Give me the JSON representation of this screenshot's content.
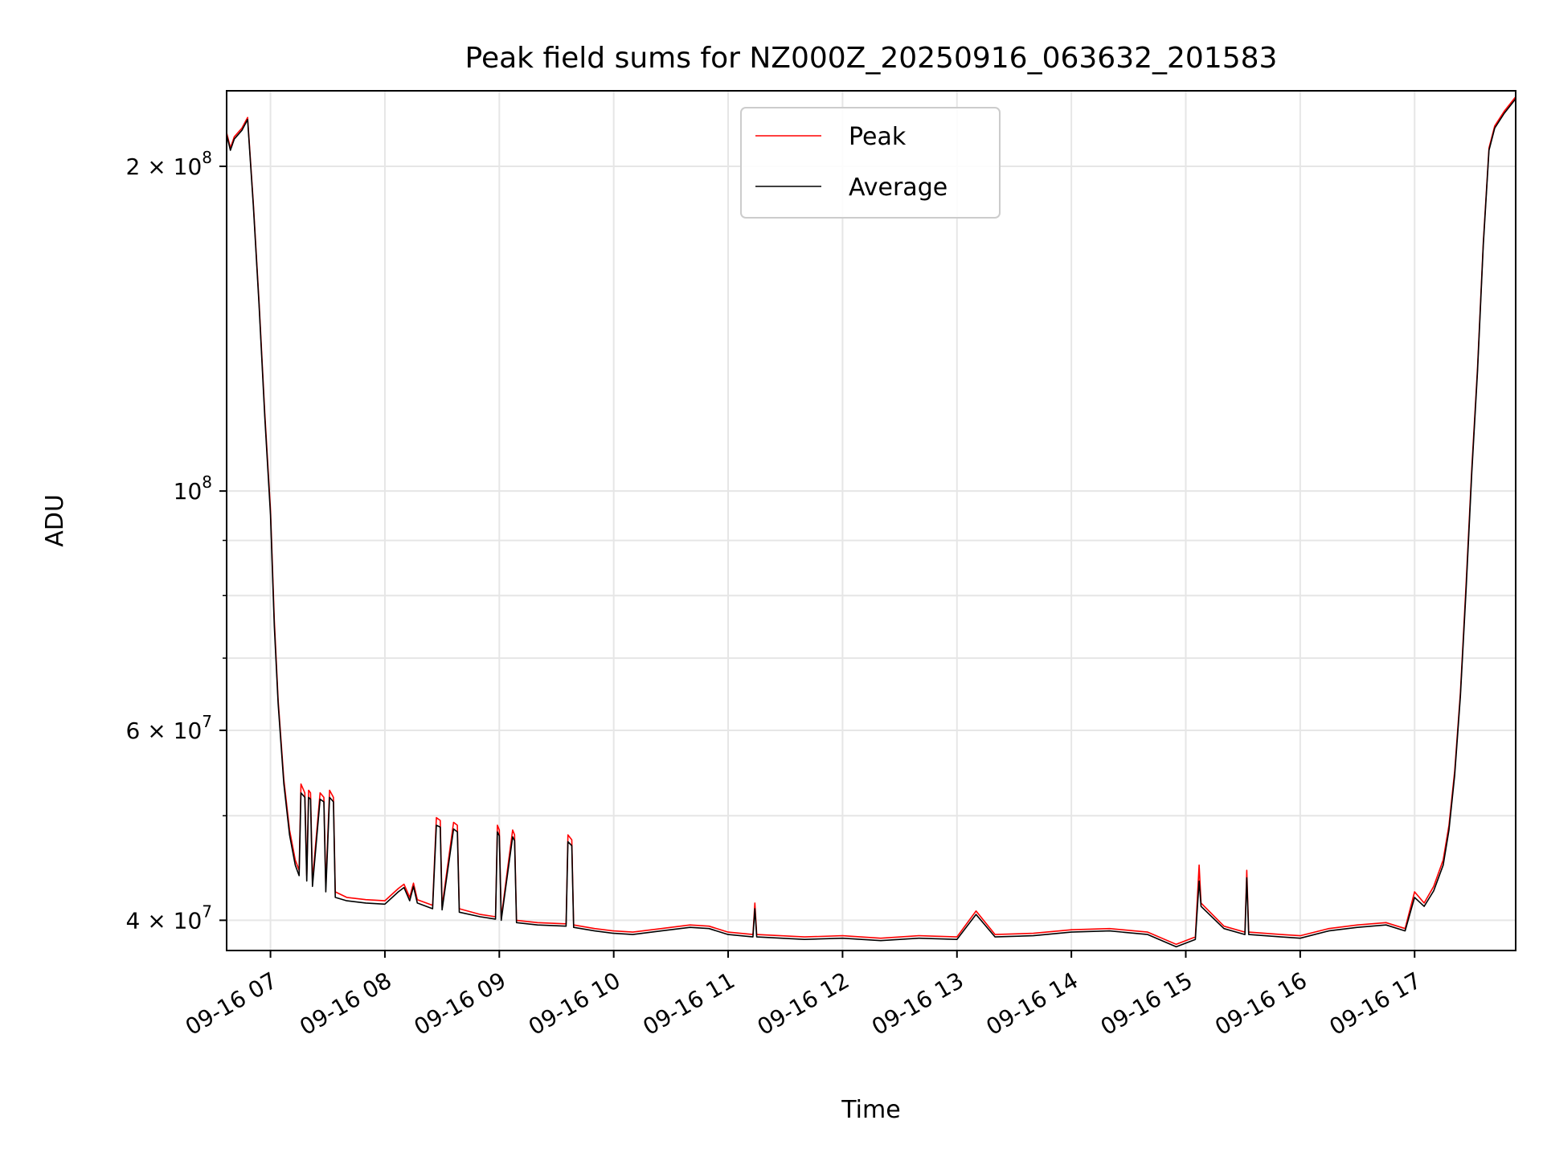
{
  "chart_data": {
    "type": "line",
    "title": "Peak field sums for NZ000Z_20250916_063632_201583",
    "xlabel": "Time",
    "ylabel": "ADU",
    "x_tick_labels": [
      "09-16 07",
      "09-16 08",
      "09-16 09",
      "09-16 10",
      "09-16 11",
      "09-16 12",
      "09-16 13",
      "09-16 14",
      "09-16 15",
      "09-16 16",
      "09-16 17"
    ],
    "x_ticks": [
      "2025-09-16 07:00",
      "2025-09-16 08:00",
      "2025-09-16 09:00",
      "2025-09-16 10:00",
      "2025-09-16 11:00",
      "2025-09-16 12:00",
      "2025-09-16 13:00",
      "2025-09-16 14:00",
      "2025-09-16 15:00",
      "2025-09-16 16:00",
      "2025-09-16 17:00"
    ],
    "xlim": [
      "2025-09-16 06:37",
      "2025-09-16 17:53"
    ],
    "y_scale": "log",
    "ylim": [
      37500000,
      235000000
    ],
    "y_major_ticks": [
      {
        "value": 40000000,
        "label": "4 × 10",
        "exp": "7"
      },
      {
        "value": 60000000,
        "label": "6 × 10",
        "exp": "7"
      },
      {
        "value": 100000000,
        "label": "10",
        "exp": "8"
      },
      {
        "value": 200000000,
        "label": "2 × 10",
        "exp": "8"
      }
    ],
    "y_minor_ticks": [
      50000000,
      70000000,
      80000000,
      90000000
    ],
    "grid": true,
    "legend_position": "top-center",
    "series": [
      {
        "name": "Peak",
        "color": "#ff0000",
        "points": [
          [
            "2025-09-16 06:37",
            215000000
          ],
          [
            "2025-09-16 06:39",
            208000000
          ],
          [
            "2025-09-16 06:41",
            213000000
          ],
          [
            "2025-09-16 06:45",
            217000000
          ],
          [
            "2025-09-16 06:48",
            222000000
          ],
          [
            "2025-09-16 06:51",
            185000000
          ],
          [
            "2025-09-16 06:54",
            150000000
          ],
          [
            "2025-09-16 06:57",
            118000000
          ],
          [
            "2025-09-16 07:00",
            96000000
          ],
          [
            "2025-09-16 07:02",
            76000000
          ],
          [
            "2025-09-16 07:04",
            64000000
          ],
          [
            "2025-09-16 07:07",
            54000000
          ],
          [
            "2025-09-16 07:10",
            48500000
          ],
          [
            "2025-09-16 07:13",
            45500000
          ],
          [
            "2025-09-16 07:15",
            44500000
          ],
          [
            "2025-09-16 07:16",
            53500000
          ],
          [
            "2025-09-16 07:18",
            52500000
          ],
          [
            "2025-09-16 07:19",
            44000000
          ],
          [
            "2025-09-16 07:20",
            52800000
          ],
          [
            "2025-09-16 07:21",
            52500000
          ],
          [
            "2025-09-16 07:22",
            43500000
          ],
          [
            "2025-09-16 07:26",
            52500000
          ],
          [
            "2025-09-16 07:28",
            52000000
          ],
          [
            "2025-09-16 07:29",
            43000000
          ],
          [
            "2025-09-16 07:31",
            52800000
          ],
          [
            "2025-09-16 07:33",
            52000000
          ],
          [
            "2025-09-16 07:34",
            42500000
          ],
          [
            "2025-09-16 07:40",
            42000000
          ],
          [
            "2025-09-16 07:50",
            41800000
          ],
          [
            "2025-09-16 08:00",
            41700000
          ],
          [
            "2025-09-16 08:07",
            42800000
          ],
          [
            "2025-09-16 08:10",
            43200000
          ],
          [
            "2025-09-16 08:13",
            42000000
          ],
          [
            "2025-09-16 08:15",
            43300000
          ],
          [
            "2025-09-16 08:17",
            41800000
          ],
          [
            "2025-09-16 08:25",
            41300000
          ],
          [
            "2025-09-16 08:27",
            49800000
          ],
          [
            "2025-09-16 08:29",
            49500000
          ],
          [
            "2025-09-16 08:30",
            41200000
          ],
          [
            "2025-09-16 08:36",
            49300000
          ],
          [
            "2025-09-16 08:38",
            49000000
          ],
          [
            "2025-09-16 08:39",
            41000000
          ],
          [
            "2025-09-16 08:50",
            40500000
          ],
          [
            "2025-09-16 08:58",
            40300000
          ],
          [
            "2025-09-16 08:59",
            49000000
          ],
          [
            "2025-09-16 09:00",
            48500000
          ],
          [
            "2025-09-16 09:01",
            40200000
          ],
          [
            "2025-09-16 09:07",
            48500000
          ],
          [
            "2025-09-16 09:08",
            48000000
          ],
          [
            "2025-09-16 09:09",
            40000000
          ],
          [
            "2025-09-16 09:20",
            39800000
          ],
          [
            "2025-09-16 09:35",
            39700000
          ],
          [
            "2025-09-16 09:36",
            48000000
          ],
          [
            "2025-09-16 09:38",
            47500000
          ],
          [
            "2025-09-16 09:39",
            39600000
          ],
          [
            "2025-09-16 09:50",
            39300000
          ],
          [
            "2025-09-16 10:00",
            39100000
          ],
          [
            "2025-09-16 10:10",
            39000000
          ],
          [
            "2025-09-16 10:25",
            39300000
          ],
          [
            "2025-09-16 10:40",
            39600000
          ],
          [
            "2025-09-16 10:50",
            39500000
          ],
          [
            "2025-09-16 11:00",
            39000000
          ],
          [
            "2025-09-16 11:13",
            38800000
          ],
          [
            "2025-09-16 11:14",
            41500000
          ],
          [
            "2025-09-16 11:15",
            38800000
          ],
          [
            "2025-09-16 11:40",
            38600000
          ],
          [
            "2025-09-16 12:00",
            38700000
          ],
          [
            "2025-09-16 12:20",
            38500000
          ],
          [
            "2025-09-16 12:40",
            38700000
          ],
          [
            "2025-09-16 13:00",
            38600000
          ],
          [
            "2025-09-16 13:10",
            40800000
          ],
          [
            "2025-09-16 13:20",
            38800000
          ],
          [
            "2025-09-16 13:40",
            38900000
          ],
          [
            "2025-09-16 14:00",
            39200000
          ],
          [
            "2025-09-16 14:20",
            39300000
          ],
          [
            "2025-09-16 14:40",
            39000000
          ],
          [
            "2025-09-16 14:55",
            38000000
          ],
          [
            "2025-09-16 15:05",
            38600000
          ],
          [
            "2025-09-16 15:07",
            45000000
          ],
          [
            "2025-09-16 15:08",
            41500000
          ],
          [
            "2025-09-16 15:20",
            39500000
          ],
          [
            "2025-09-16 15:31",
            39000000
          ],
          [
            "2025-09-16 15:32",
            44500000
          ],
          [
            "2025-09-16 15:33",
            39000000
          ],
          [
            "2025-09-16 15:50",
            38800000
          ],
          [
            "2025-09-16 16:00",
            38700000
          ],
          [
            "2025-09-16 16:15",
            39300000
          ],
          [
            "2025-09-16 16:30",
            39600000
          ],
          [
            "2025-09-16 16:45",
            39800000
          ],
          [
            "2025-09-16 16:55",
            39300000
          ],
          [
            "2025-09-16 17:00",
            42500000
          ],
          [
            "2025-09-16 17:05",
            41500000
          ],
          [
            "2025-09-16 17:10",
            43000000
          ],
          [
            "2025-09-16 17:15",
            45500000
          ],
          [
            "2025-09-16 17:18",
            49000000
          ],
          [
            "2025-09-16 17:21",
            55000000
          ],
          [
            "2025-09-16 17:24",
            65000000
          ],
          [
            "2025-09-16 17:27",
            82000000
          ],
          [
            "2025-09-16 17:30",
            105000000
          ],
          [
            "2025-09-16 17:33",
            130000000
          ],
          [
            "2025-09-16 17:36",
            170000000
          ],
          [
            "2025-09-16 17:39",
            208000000
          ],
          [
            "2025-09-16 17:42",
            218000000
          ],
          [
            "2025-09-16 17:47",
            225000000
          ],
          [
            "2025-09-16 17:53",
            232000000
          ]
        ]
      },
      {
        "name": "Average",
        "color": "#000000",
        "points": [
          [
            "2025-09-16 06:37",
            214000000
          ],
          [
            "2025-09-16 06:39",
            207000000
          ],
          [
            "2025-09-16 06:41",
            212000000
          ],
          [
            "2025-09-16 06:45",
            216000000
          ],
          [
            "2025-09-16 06:48",
            221000000
          ],
          [
            "2025-09-16 06:51",
            184000000
          ],
          [
            "2025-09-16 06:54",
            149000000
          ],
          [
            "2025-09-16 06:57",
            117000000
          ],
          [
            "2025-09-16 07:00",
            95000000
          ],
          [
            "2025-09-16 07:02",
            75000000
          ],
          [
            "2025-09-16 07:04",
            63500000
          ],
          [
            "2025-09-16 07:07",
            53500000
          ],
          [
            "2025-09-16 07:10",
            48000000
          ],
          [
            "2025-09-16 07:13",
            45000000
          ],
          [
            "2025-09-16 07:15",
            44000000
          ],
          [
            "2025-09-16 07:16",
            52500000
          ],
          [
            "2025-09-16 07:18",
            52000000
          ],
          [
            "2025-09-16 07:19",
            43500000
          ],
          [
            "2025-09-16 07:20",
            52000000
          ],
          [
            "2025-09-16 07:21",
            51800000
          ],
          [
            "2025-09-16 07:22",
            43000000
          ],
          [
            "2025-09-16 07:26",
            51800000
          ],
          [
            "2025-09-16 07:28",
            51500000
          ],
          [
            "2025-09-16 07:29",
            42500000
          ],
          [
            "2025-09-16 07:31",
            52000000
          ],
          [
            "2025-09-16 07:33",
            51500000
          ],
          [
            "2025-09-16 07:34",
            42000000
          ],
          [
            "2025-09-16 07:40",
            41700000
          ],
          [
            "2025-09-16 07:50",
            41500000
          ],
          [
            "2025-09-16 08:00",
            41400000
          ],
          [
            "2025-09-16 08:07",
            42500000
          ],
          [
            "2025-09-16 08:10",
            42900000
          ],
          [
            "2025-09-16 08:13",
            41700000
          ],
          [
            "2025-09-16 08:15",
            43000000
          ],
          [
            "2025-09-16 08:17",
            41500000
          ],
          [
            "2025-09-16 08:25",
            41000000
          ],
          [
            "2025-09-16 08:27",
            49000000
          ],
          [
            "2025-09-16 08:29",
            48800000
          ],
          [
            "2025-09-16 08:30",
            40900000
          ],
          [
            "2025-09-16 08:36",
            48600000
          ],
          [
            "2025-09-16 08:38",
            48300000
          ],
          [
            "2025-09-16 08:39",
            40700000
          ],
          [
            "2025-09-16 08:50",
            40300000
          ],
          [
            "2025-09-16 08:58",
            40100000
          ],
          [
            "2025-09-16 08:59",
            48300000
          ],
          [
            "2025-09-16 09:00",
            47900000
          ],
          [
            "2025-09-16 09:01",
            40000000
          ],
          [
            "2025-09-16 09:07",
            47800000
          ],
          [
            "2025-09-16 09:08",
            47400000
          ],
          [
            "2025-09-16 09:09",
            39800000
          ],
          [
            "2025-09-16 09:20",
            39600000
          ],
          [
            "2025-09-16 09:35",
            39500000
          ],
          [
            "2025-09-16 09:36",
            47300000
          ],
          [
            "2025-09-16 09:38",
            46900000
          ],
          [
            "2025-09-16 09:39",
            39400000
          ],
          [
            "2025-09-16 09:50",
            39100000
          ],
          [
            "2025-09-16 10:00",
            38900000
          ],
          [
            "2025-09-16 10:10",
            38800000
          ],
          [
            "2025-09-16 10:25",
            39100000
          ],
          [
            "2025-09-16 10:40",
            39400000
          ],
          [
            "2025-09-16 10:50",
            39300000
          ],
          [
            "2025-09-16 11:00",
            38800000
          ],
          [
            "2025-09-16 11:13",
            38600000
          ],
          [
            "2025-09-16 11:14",
            41000000
          ],
          [
            "2025-09-16 11:15",
            38600000
          ],
          [
            "2025-09-16 11:40",
            38400000
          ],
          [
            "2025-09-16 12:00",
            38500000
          ],
          [
            "2025-09-16 12:20",
            38300000
          ],
          [
            "2025-09-16 12:40",
            38500000
          ],
          [
            "2025-09-16 13:00",
            38400000
          ],
          [
            "2025-09-16 13:10",
            40500000
          ],
          [
            "2025-09-16 13:20",
            38600000
          ],
          [
            "2025-09-16 13:40",
            38700000
          ],
          [
            "2025-09-16 14:00",
            39000000
          ],
          [
            "2025-09-16 14:20",
            39100000
          ],
          [
            "2025-09-16 14:40",
            38800000
          ],
          [
            "2025-09-16 14:55",
            37800000
          ],
          [
            "2025-09-16 15:05",
            38400000
          ],
          [
            "2025-09-16 15:07",
            43500000
          ],
          [
            "2025-09-16 15:08",
            41200000
          ],
          [
            "2025-09-16 15:20",
            39300000
          ],
          [
            "2025-09-16 15:31",
            38800000
          ],
          [
            "2025-09-16 15:32",
            43800000
          ],
          [
            "2025-09-16 15:33",
            38800000
          ],
          [
            "2025-09-16 15:50",
            38600000
          ],
          [
            "2025-09-16 16:00",
            38500000
          ],
          [
            "2025-09-16 16:15",
            39100000
          ],
          [
            "2025-09-16 16:30",
            39400000
          ],
          [
            "2025-09-16 16:45",
            39600000
          ],
          [
            "2025-09-16 16:55",
            39100000
          ],
          [
            "2025-09-16 17:00",
            42000000
          ],
          [
            "2025-09-16 17:05",
            41200000
          ],
          [
            "2025-09-16 17:10",
            42600000
          ],
          [
            "2025-09-16 17:15",
            45000000
          ],
          [
            "2025-09-16 17:18",
            48500000
          ],
          [
            "2025-09-16 17:21",
            54500000
          ],
          [
            "2025-09-16 17:24",
            64500000
          ],
          [
            "2025-09-16 17:27",
            81000000
          ],
          [
            "2025-09-16 17:30",
            104000000
          ],
          [
            "2025-09-16 17:33",
            129000000
          ],
          [
            "2025-09-16 17:36",
            169000000
          ],
          [
            "2025-09-16 17:39",
            207000000
          ],
          [
            "2025-09-16 17:42",
            217000000
          ],
          [
            "2025-09-16 17:47",
            224000000
          ],
          [
            "2025-09-16 17:53",
            231000000
          ]
        ]
      }
    ]
  }
}
